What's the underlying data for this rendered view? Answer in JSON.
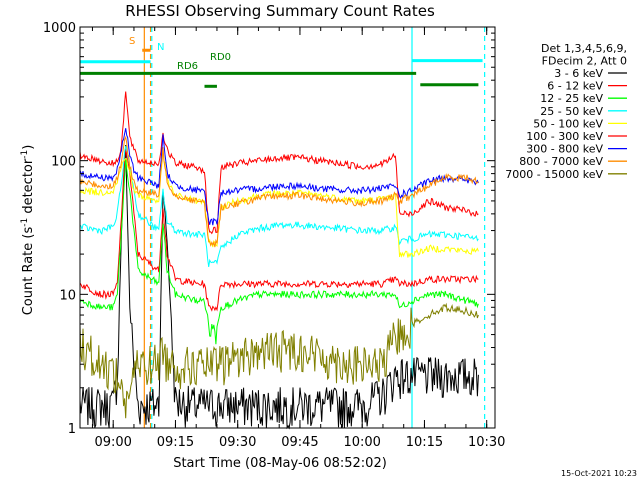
{
  "chart_data": {
    "type": "line",
    "title": "RHESSI Observing Summary Count Rates",
    "xlabel": "Start Time (08-May-06 08:52:02)",
    "ylabel_main": "Count Rate (s",
    "ylabel_sup": "-1",
    "ylabel_mid": " detector",
    "ylabel_sup2": "-1",
    "ylabel_end": ")",
    "footer": "15-Oct-2021 10:23",
    "x_range_minutes": [
      532,
      632
    ],
    "ylim": [
      1,
      1000
    ],
    "y_scale": "log",
    "x_ticks": [
      {
        "t": 540,
        "label": "09:00"
      },
      {
        "t": 555,
        "label": "09:15"
      },
      {
        "t": 570,
        "label": "09:30"
      },
      {
        "t": 585,
        "label": "09:45"
      },
      {
        "t": 600,
        "label": "10:00"
      },
      {
        "t": 615,
        "label": "10:15"
      },
      {
        "t": 630,
        "label": "10:30"
      }
    ],
    "y_ticks": [
      {
        "v": 1,
        "label": "1"
      },
      {
        "v": 10,
        "label": "10"
      },
      {
        "v": 100,
        "label": "100"
      },
      {
        "v": 1000,
        "label": "1000"
      }
    ],
    "legend_header": [
      "Det 1,3,4,5,6,9,",
      "FDecim 2, Att 0"
    ],
    "series": [
      {
        "name": "3 - 6 keV",
        "color": "#000000",
        "points": [
          [
            532,
            1.5
          ],
          [
            537,
            1.5
          ],
          [
            540,
            1.5
          ],
          [
            541,
            2.5
          ],
          [
            542,
            30
          ],
          [
            543,
            130
          ],
          [
            544,
            8
          ],
          [
            545,
            3
          ],
          [
            546,
            1.5
          ],
          [
            551,
            1.5
          ],
          [
            552,
            60
          ],
          [
            553,
            25
          ],
          [
            555,
            1.6
          ],
          [
            560,
            1.5
          ],
          [
            565,
            1.5
          ],
          [
            570,
            1.5
          ],
          [
            575,
            1.5
          ],
          [
            580,
            1.5
          ],
          [
            585,
            1.5
          ],
          [
            590,
            1.5
          ],
          [
            595,
            1.5
          ],
          [
            600,
            1.5
          ],
          [
            605,
            1.8
          ],
          [
            608,
            2.5
          ],
          [
            612,
            2.5
          ],
          [
            616,
            2.5
          ],
          [
            620,
            2.5
          ],
          [
            625,
            2.5
          ],
          [
            628,
            2.5
          ]
        ]
      },
      {
        "name": "6 - 12 keV",
        "color": "#ff0000",
        "points": [
          [
            532,
            12
          ],
          [
            537,
            10
          ],
          [
            540,
            10
          ],
          [
            541,
            12
          ],
          [
            542,
            40
          ],
          [
            543,
            130
          ],
          [
            544,
            80
          ],
          [
            545,
            40
          ],
          [
            546,
            20
          ],
          [
            551,
            15
          ],
          [
            552,
            45
          ],
          [
            553,
            20
          ],
          [
            555,
            13
          ],
          [
            560,
            12
          ],
          [
            562,
            12
          ],
          [
            563,
            8
          ],
          [
            565,
            8
          ],
          [
            566,
            12
          ],
          [
            570,
            12
          ],
          [
            575,
            12
          ],
          [
            580,
            12
          ],
          [
            585,
            12
          ],
          [
            590,
            12
          ],
          [
            595,
            12
          ],
          [
            600,
            12
          ],
          [
            605,
            12
          ],
          [
            608,
            13
          ],
          [
            609,
            12
          ],
          [
            612,
            12
          ],
          [
            616,
            13
          ],
          [
            620,
            13
          ],
          [
            625,
            13
          ],
          [
            628,
            13
          ]
        ]
      },
      {
        "name": "12 - 25 keV",
        "color": "#00ff00",
        "points": [
          [
            532,
            9
          ],
          [
            537,
            8
          ],
          [
            540,
            8
          ],
          [
            541,
            10
          ],
          [
            542,
            30
          ],
          [
            543,
            100
          ],
          [
            544,
            60
          ],
          [
            545,
            30
          ],
          [
            546,
            15
          ],
          [
            551,
            12
          ],
          [
            552,
            35
          ],
          [
            553,
            15
          ],
          [
            555,
            10
          ],
          [
            560,
            9
          ],
          [
            562,
            9
          ],
          [
            563,
            6
          ],
          [
            564,
            5
          ],
          [
            565,
            6
          ],
          [
            566,
            8
          ],
          [
            570,
            9
          ],
          [
            575,
            10
          ],
          [
            580,
            10
          ],
          [
            585,
            10
          ],
          [
            590,
            10
          ],
          [
            595,
            10
          ],
          [
            600,
            10
          ],
          [
            605,
            10
          ],
          [
            608,
            10
          ],
          [
            609,
            8
          ],
          [
            612,
            9
          ],
          [
            616,
            10
          ],
          [
            620,
            10
          ],
          [
            625,
            9
          ],
          [
            628,
            8.5
          ]
        ]
      },
      {
        "name": "25 - 50 keV",
        "color": "#00ffff",
        "points": [
          [
            532,
            32
          ],
          [
            537,
            30
          ],
          [
            540,
            32
          ],
          [
            541,
            40
          ],
          [
            542,
            70
          ],
          [
            543,
            130
          ],
          [
            544,
            90
          ],
          [
            545,
            60
          ],
          [
            546,
            40
          ],
          [
            551,
            30
          ],
          [
            552,
            60
          ],
          [
            553,
            35
          ],
          [
            555,
            30
          ],
          [
            560,
            28
          ],
          [
            562,
            28
          ],
          [
            563,
            17
          ],
          [
            565,
            17
          ],
          [
            566,
            22
          ],
          [
            570,
            28
          ],
          [
            575,
            31
          ],
          [
            580,
            33
          ],
          [
            585,
            33
          ],
          [
            590,
            32
          ],
          [
            595,
            31
          ],
          [
            600,
            30
          ],
          [
            605,
            30
          ],
          [
            608,
            32
          ],
          [
            609,
            25
          ],
          [
            612,
            26
          ],
          [
            616,
            28
          ],
          [
            620,
            28
          ],
          [
            625,
            27
          ],
          [
            628,
            26
          ]
        ]
      },
      {
        "name": "50 - 100 keV",
        "color": "#ffff00",
        "points": [
          [
            532,
            60
          ],
          [
            537,
            58
          ],
          [
            540,
            60
          ],
          [
            541,
            70
          ],
          [
            542,
            90
          ],
          [
            543,
            110
          ],
          [
            544,
            80
          ],
          [
            545,
            60
          ],
          [
            546,
            55
          ],
          [
            551,
            50
          ],
          [
            552,
            120
          ],
          [
            553,
            70
          ],
          [
            555,
            55
          ],
          [
            560,
            50
          ],
          [
            562,
            50
          ],
          [
            563,
            24
          ],
          [
            565,
            24
          ],
          [
            566,
            45
          ],
          [
            570,
            50
          ],
          [
            575,
            55
          ],
          [
            580,
            57
          ],
          [
            585,
            57
          ],
          [
            590,
            55
          ],
          [
            595,
            52
          ],
          [
            600,
            50
          ],
          [
            605,
            52
          ],
          [
            608,
            55
          ],
          [
            609,
            20
          ],
          [
            612,
            20
          ],
          [
            616,
            22
          ],
          [
            620,
            22
          ],
          [
            625,
            21
          ],
          [
            628,
            21
          ]
        ]
      },
      {
        "name": "100 - 300 keV",
        "color": "#ff0000",
        "points": [
          [
            532,
            110
          ],
          [
            537,
            100
          ],
          [
            540,
            95
          ],
          [
            541,
            100
          ],
          [
            542,
            130
          ],
          [
            543,
            330
          ],
          [
            544,
            150
          ],
          [
            545,
            120
          ],
          [
            546,
            100
          ],
          [
            551,
            95
          ],
          [
            552,
            160
          ],
          [
            553,
            120
          ],
          [
            555,
            95
          ],
          [
            560,
            90
          ],
          [
            562,
            85
          ],
          [
            563,
            30
          ],
          [
            565,
            30
          ],
          [
            566,
            90
          ],
          [
            570,
            95
          ],
          [
            575,
            100
          ],
          [
            580,
            105
          ],
          [
            585,
            105
          ],
          [
            590,
            100
          ],
          [
            595,
            95
          ],
          [
            600,
            90
          ],
          [
            605,
            95
          ],
          [
            608,
            110
          ],
          [
            609,
            40
          ],
          [
            612,
            40
          ],
          [
            616,
            50
          ],
          [
            620,
            45
          ],
          [
            625,
            42
          ],
          [
            628,
            40
          ]
        ]
      },
      {
        "name": "300 - 800 keV",
        "color": "#0000ff",
        "points": [
          [
            532,
            80
          ],
          [
            537,
            75
          ],
          [
            540,
            75
          ],
          [
            541,
            85
          ],
          [
            542,
            120
          ],
          [
            543,
            180
          ],
          [
            544,
            110
          ],
          [
            545,
            85
          ],
          [
            546,
            75
          ],
          [
            551,
            65
          ],
          [
            552,
            150
          ],
          [
            553,
            80
          ],
          [
            555,
            65
          ],
          [
            560,
            60
          ],
          [
            562,
            58
          ],
          [
            563,
            35
          ],
          [
            565,
            35
          ],
          [
            566,
            58
          ],
          [
            570,
            60
          ],
          [
            575,
            62
          ],
          [
            580,
            65
          ],
          [
            585,
            65
          ],
          [
            590,
            62
          ],
          [
            595,
            60
          ],
          [
            600,
            60
          ],
          [
            605,
            62
          ],
          [
            608,
            65
          ],
          [
            609,
            55
          ],
          [
            612,
            60
          ],
          [
            616,
            70
          ],
          [
            620,
            75
          ],
          [
            625,
            72
          ],
          [
            628,
            68
          ]
        ]
      },
      {
        "name": "800 - 7000 keV",
        "color": "#ff8c00",
        "points": [
          [
            532,
            70
          ],
          [
            537,
            65
          ],
          [
            540,
            65
          ],
          [
            541,
            75
          ],
          [
            542,
            100
          ],
          [
            543,
            150
          ],
          [
            544,
            90
          ],
          [
            545,
            70
          ],
          [
            546,
            60
          ],
          [
            551,
            55
          ],
          [
            552,
            120
          ],
          [
            553,
            70
          ],
          [
            555,
            55
          ],
          [
            560,
            50
          ],
          [
            562,
            48
          ],
          [
            563,
            24
          ],
          [
            565,
            24
          ],
          [
            566,
            45
          ],
          [
            570,
            48
          ],
          [
            575,
            52
          ],
          [
            580,
            55
          ],
          [
            585,
            55
          ],
          [
            590,
            52
          ],
          [
            595,
            50
          ],
          [
            600,
            48
          ],
          [
            605,
            50
          ],
          [
            608,
            55
          ],
          [
            609,
            50
          ],
          [
            612,
            55
          ],
          [
            616,
            65
          ],
          [
            620,
            75
          ],
          [
            625,
            75
          ],
          [
            628,
            70
          ]
        ]
      },
      {
        "name": "7000 - 15000 keV",
        "color": "#808000",
        "points": [
          [
            532,
            4.5
          ],
          [
            537,
            3
          ],
          [
            540,
            2.8
          ],
          [
            541,
            2.5
          ],
          [
            542,
            2
          ],
          [
            543,
            1.5
          ],
          [
            544,
            2
          ],
          [
            545,
            2.5
          ],
          [
            546,
            3
          ],
          [
            551,
            3.2
          ],
          [
            552,
            4
          ],
          [
            553,
            3.2
          ],
          [
            555,
            3
          ],
          [
            560,
            3
          ],
          [
            565,
            3
          ],
          [
            570,
            3.5
          ],
          [
            575,
            3.8
          ],
          [
            580,
            4
          ],
          [
            585,
            4
          ],
          [
            590,
            3.5
          ],
          [
            595,
            3.2
          ],
          [
            600,
            3
          ],
          [
            605,
            3
          ],
          [
            608,
            5
          ],
          [
            612,
            6
          ],
          [
            616,
            7
          ],
          [
            620,
            8
          ],
          [
            625,
            7.5
          ],
          [
            628,
            7
          ]
        ]
      }
    ],
    "state_flags": [
      {
        "label": "S",
        "color": "#ff8c00",
        "from": 547,
        "to": 549,
        "y": 670
      },
      {
        "label": "N",
        "color": "#00ffff",
        "from": 532,
        "to": 549,
        "y": 550
      },
      {
        "label": "RD0",
        "color": "#008000",
        "from": 532,
        "to": 613,
        "y": 450
      },
      {
        "label": "RD6",
        "color": "#008000",
        "from": 562,
        "to": 565,
        "y": 360
      },
      {
        "label": "",
        "color": "#008000",
        "from": 614,
        "to": 628,
        "y": 370
      },
      {
        "label": "",
        "color": "#00ffff",
        "from": 612,
        "to": 629,
        "y": 560
      }
    ],
    "markers": [
      {
        "t": 547.5,
        "color": "#ff8c00",
        "dash": false
      },
      {
        "t": 549,
        "color": "#ff8c00",
        "dash": true
      },
      {
        "t": 549.3,
        "color": "#00ffff",
        "dash": true
      },
      {
        "t": 612,
        "color": "#00ffff",
        "dash": false
      },
      {
        "t": 629.5,
        "color": "#00ffff",
        "dash": true
      }
    ]
  }
}
